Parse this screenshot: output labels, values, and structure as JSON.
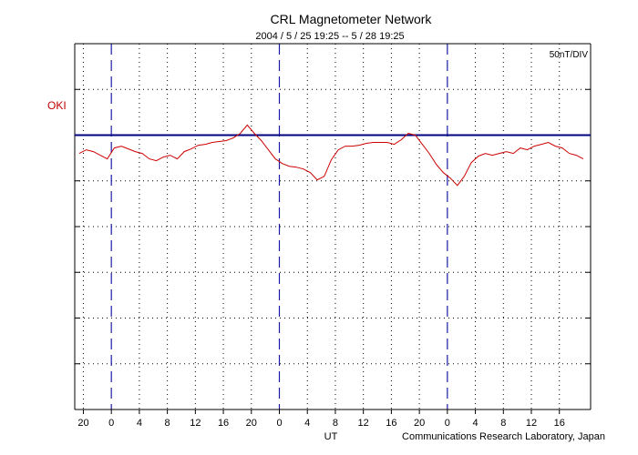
{
  "header": {
    "title": "CRL Magnetometer Network",
    "subtitle": "2004 / 5 / 25   19:25 --  5 / 28   19:25"
  },
  "scale_label": "50nT/DIV",
  "xlabel": "UT",
  "credit": "Communications Research Laboratory, Japan",
  "colors": {
    "trace": "#cc0000",
    "baseline": "#000080",
    "day_divider": "#1a1aa6",
    "station_label": "#cc0000"
  },
  "chart_data": {
    "type": "line",
    "title": "CRL Magnetometer Network",
    "subtitle": "2004 / 5 / 25   19:25 --  5 / 28   19:25",
    "xlabel": "UT",
    "ylabel": "",
    "scale": "50nT/DIV",
    "x_unit": "hours from start (UT)",
    "xlim": [
      0,
      72
    ],
    "ylim": [
      -300,
      100
    ],
    "grid": true,
    "x_tick_labels": [
      "20",
      "0",
      "4",
      "8",
      "12",
      "16",
      "20",
      "0",
      "4",
      "8",
      "12",
      "16",
      "20",
      "0",
      "4",
      "8",
      "12",
      "16"
    ],
    "x_tick_hours_from_start": [
      0.58,
      4.58,
      8.58,
      12.58,
      16.58,
      20.58,
      24.58,
      28.58,
      32.58,
      36.58,
      40.58,
      44.58,
      48.58,
      52.58,
      56.58,
      60.58,
      64.58,
      68.58
    ],
    "day_dividers_hours_from_start": [
      4.58,
      28.58,
      52.58
    ],
    "series": [
      {
        "name": "OKI",
        "x": [
          0,
          1,
          2,
          3,
          4,
          5,
          6,
          7,
          8,
          9,
          10,
          11,
          12,
          13,
          14,
          15,
          16,
          17,
          18,
          19,
          20,
          21,
          22,
          23,
          24,
          25,
          26,
          27,
          28,
          29,
          30,
          31,
          32,
          33,
          34,
          35,
          36,
          37,
          38,
          39,
          40,
          41,
          42,
          43,
          44,
          45,
          46,
          47,
          48,
          49,
          50,
          51,
          52,
          53,
          54,
          55,
          56,
          57,
          58,
          59,
          60,
          61,
          62,
          63,
          64,
          65,
          66,
          67,
          68,
          69,
          70,
          71,
          72
        ],
        "y": [
          -20,
          -16,
          -18,
          -22,
          -26,
          -14,
          -12,
          -15,
          -18,
          -20,
          -26,
          -28,
          -24,
          -22,
          -26,
          -18,
          -15,
          -11,
          -10,
          -8,
          -7,
          -6,
          -3,
          2,
          11,
          2,
          -6,
          -16,
          -26,
          -31,
          -34,
          -35,
          -37,
          -41,
          -49,
          -45,
          -27,
          -16,
          -12,
          -12,
          -11,
          -9,
          -8,
          -8,
          -8,
          -10,
          -5,
          2,
          0,
          -10,
          -20,
          -32,
          -41,
          -47,
          -55,
          -45,
          -30,
          -23,
          -20,
          -22,
          -20,
          -18,
          -20,
          -14,
          -16,
          -12,
          -10,
          -8,
          -12,
          -14,
          -20,
          -22,
          -26
        ]
      }
    ]
  }
}
